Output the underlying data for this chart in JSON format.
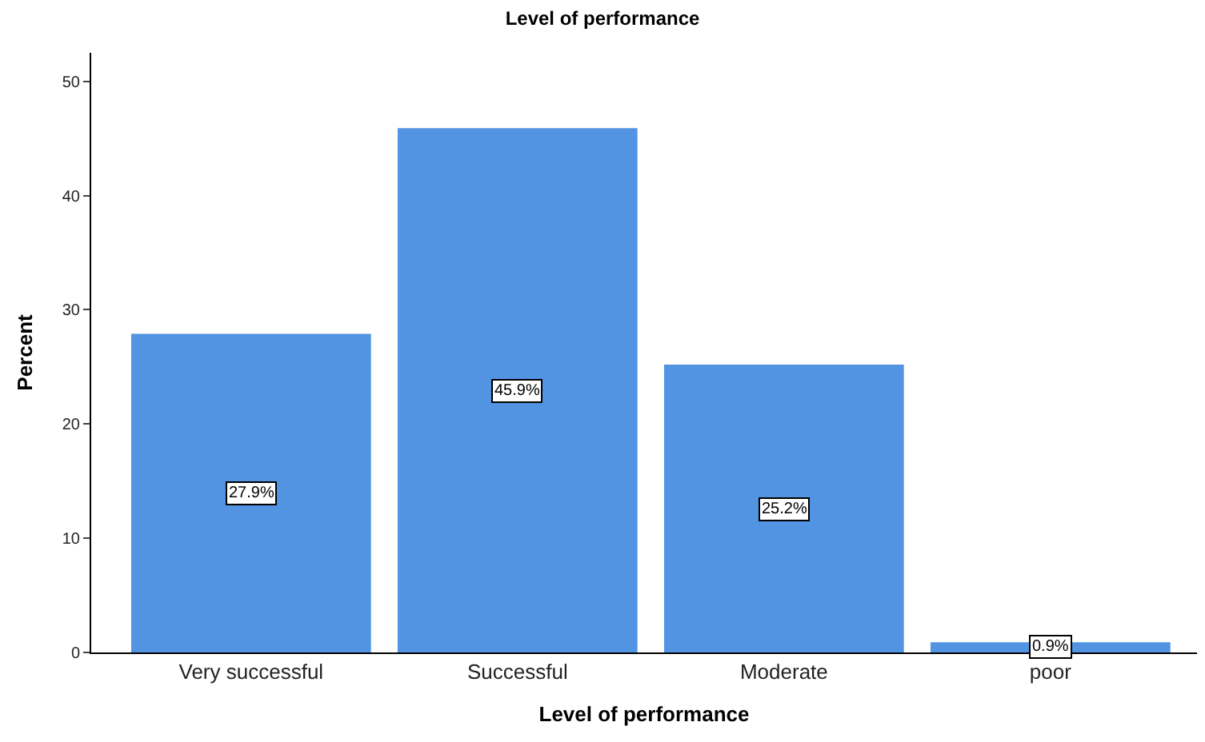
{
  "chart_data": {
    "type": "bar",
    "title": "Level of performance",
    "xlabel": "Level of performance",
    "ylabel": "Percent",
    "categories": [
      "Very successful",
      "Successful",
      "Moderate",
      "poor"
    ],
    "values": [
      27.9,
      45.9,
      25.2,
      0.9
    ],
    "value_labels": [
      "27.9%",
      "45.9%",
      "25.2%",
      "0.9%"
    ],
    "color": "#5294e2",
    "ylim": [
      0,
      52.5
    ],
    "yticks": [
      0,
      10,
      20,
      30,
      40,
      50
    ]
  }
}
